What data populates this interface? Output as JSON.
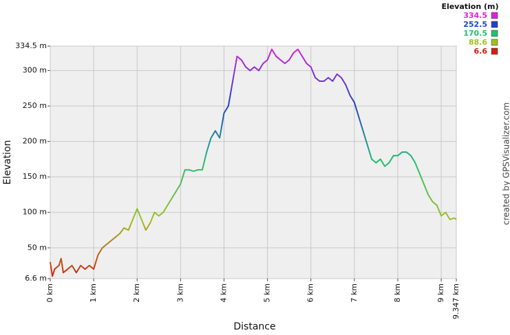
{
  "chart_data": {
    "type": "line",
    "x_label": "Distance",
    "y_label": "Elevation",
    "legend_title": "Elevation (m)",
    "credit": "created by GPSVisualizer.com",
    "x": [
      0,
      0.05,
      0.1,
      0.2,
      0.25,
      0.3,
      0.4,
      0.5,
      0.6,
      0.7,
      0.8,
      0.9,
      1.0,
      1.1,
      1.2,
      1.3,
      1.4,
      1.5,
      1.6,
      1.7,
      1.8,
      1.9,
      2.0,
      2.1,
      2.2,
      2.3,
      2.4,
      2.5,
      2.6,
      2.7,
      2.8,
      2.9,
      3.0,
      3.1,
      3.2,
      3.3,
      3.4,
      3.5,
      3.6,
      3.7,
      3.8,
      3.9,
      4.0,
      4.1,
      4.2,
      4.3,
      4.4,
      4.5,
      4.6,
      4.7,
      4.8,
      4.9,
      5.0,
      5.1,
      5.2,
      5.3,
      5.4,
      5.5,
      5.6,
      5.7,
      5.8,
      5.9,
      6.0,
      6.1,
      6.2,
      6.3,
      6.4,
      6.5,
      6.6,
      6.7,
      6.8,
      6.9,
      7.0,
      7.1,
      7.2,
      7.3,
      7.4,
      7.5,
      7.6,
      7.7,
      7.8,
      7.9,
      8.0,
      8.1,
      8.2,
      8.3,
      8.4,
      8.5,
      8.6,
      8.7,
      8.8,
      8.9,
      9.0,
      9.1,
      9.2,
      9.3,
      9.347
    ],
    "values": [
      30,
      10,
      20,
      25,
      35,
      15,
      20,
      25,
      15,
      25,
      20,
      25,
      20,
      40,
      50,
      55,
      60,
      65,
      70,
      78,
      75,
      90,
      105,
      90,
      75,
      85,
      100,
      95,
      100,
      110,
      120,
      130,
      140,
      160,
      160,
      158,
      160,
      160,
      185,
      205,
      215,
      205,
      240,
      250,
      285,
      320,
      315,
      305,
      300,
      305,
      300,
      310,
      315,
      330,
      320,
      315,
      310,
      315,
      325,
      330,
      320,
      310,
      305,
      290,
      285,
      285,
      290,
      285,
      295,
      290,
      280,
      265,
      255,
      235,
      215,
      195,
      175,
      170,
      175,
      165,
      170,
      180,
      180,
      185,
      185,
      180,
      170,
      155,
      140,
      125,
      115,
      110,
      95,
      100,
      90,
      92,
      90
    ],
    "xlim": [
      0,
      9.347
    ],
    "ylim": [
      6.6,
      334.5
    ],
    "xticks": [
      {
        "value": 0,
        "label": "0 km"
      },
      {
        "value": 1,
        "label": "1 km"
      },
      {
        "value": 2,
        "label": "2 km"
      },
      {
        "value": 3,
        "label": "3 km"
      },
      {
        "value": 4,
        "label": "4 km"
      },
      {
        "value": 5,
        "label": "5 km"
      },
      {
        "value": 6,
        "label": "6 km"
      },
      {
        "value": 7,
        "label": "7 km"
      },
      {
        "value": 8,
        "label": "8 km"
      },
      {
        "value": 9,
        "label": "9 km"
      },
      {
        "value": 9.347,
        "label": "9.347 km"
      }
    ],
    "yticks": [
      {
        "value": 6.6,
        "label": "6.6 m"
      },
      {
        "value": 50,
        "label": "50 m"
      },
      {
        "value": 100,
        "label": "100 m"
      },
      {
        "value": 150,
        "label": "150 m"
      },
      {
        "value": 200,
        "label": "200 m"
      },
      {
        "value": 250,
        "label": "250 m"
      },
      {
        "value": 300,
        "label": "300 m"
      },
      {
        "value": 334.5,
        "label": "334.5 m"
      }
    ],
    "grid": true,
    "color_scale": [
      {
        "value": 334.5,
        "color": "#e020e0"
      },
      {
        "value": 252.5,
        "color": "#2040d0"
      },
      {
        "value": 170.5,
        "color": "#20c070"
      },
      {
        "value": 88.6,
        "color": "#a0c020"
      },
      {
        "value": 6.6,
        "color": "#d02010"
      }
    ]
  }
}
